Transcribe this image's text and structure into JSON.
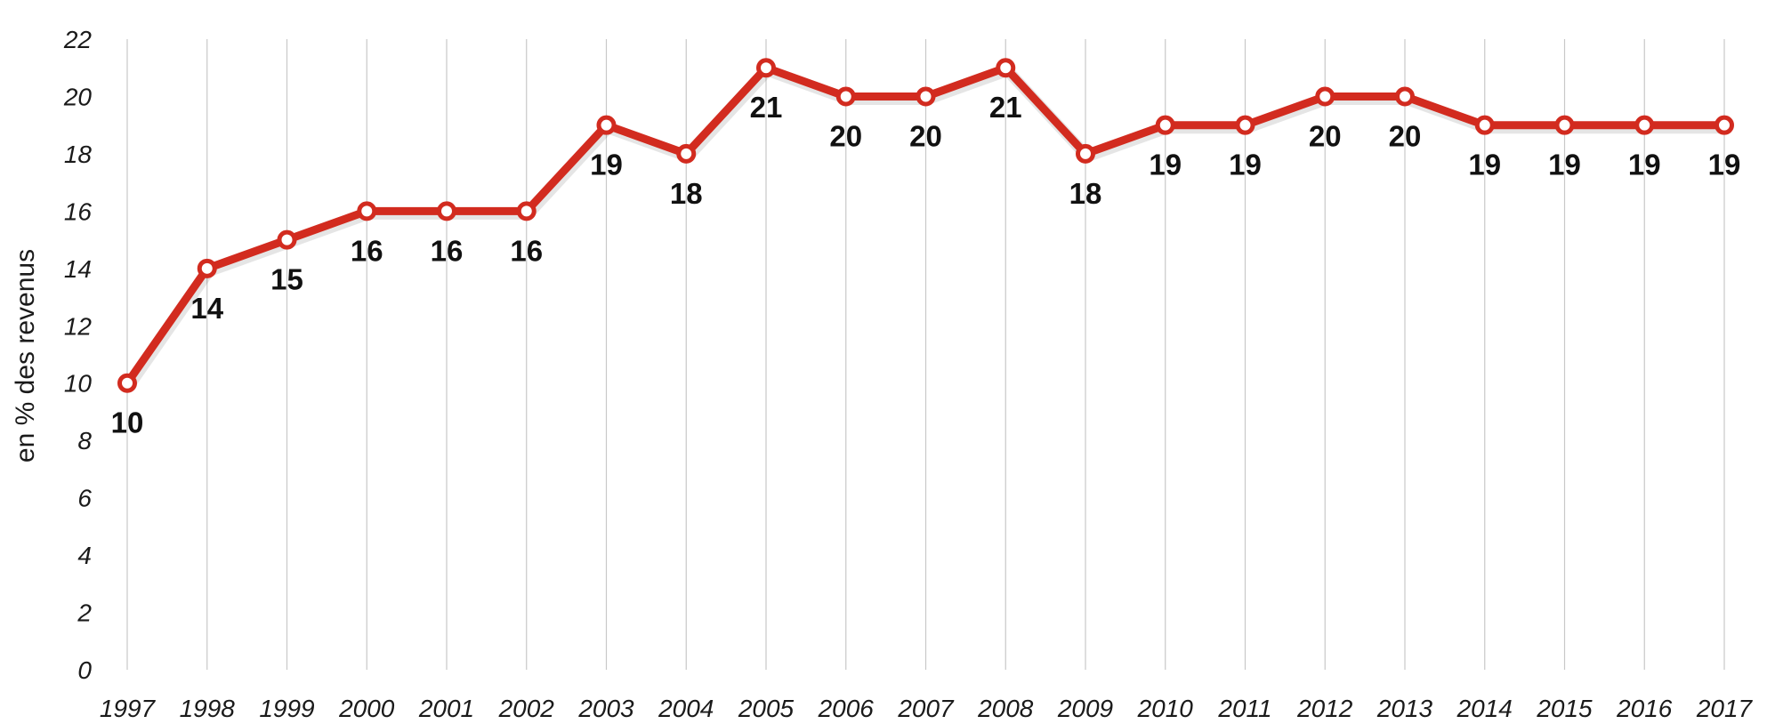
{
  "chart_data": {
    "type": "line",
    "title": "",
    "xlabel": "",
    "ylabel": "en % des revenus",
    "categories": [
      "1997",
      "1998",
      "1999",
      "2000",
      "2001",
      "2002",
      "2003",
      "2004",
      "2005",
      "2006",
      "2007",
      "2008",
      "2009",
      "2010",
      "2011",
      "2012",
      "2013",
      "2014",
      "2015",
      "2016",
      "2017"
    ],
    "series": [
      {
        "values": [
          10,
          14,
          15,
          16,
          16,
          16,
          19,
          18,
          21,
          20,
          20,
          21,
          18,
          19,
          19,
          20,
          20,
          19,
          19,
          19,
          19
        ],
        "data_labels": [
          "10",
          "14",
          "15",
          "16",
          "16",
          "16",
          "19",
          "18",
          "21",
          "20",
          "20",
          "21",
          "18",
          "19",
          "19",
          "20",
          "20",
          "19",
          "19",
          "19",
          "19"
        ],
        "color": "#d22b1f"
      }
    ],
    "ylim": [
      0,
      22
    ],
    "yticks": [
      "0",
      "2",
      "4",
      "6",
      "8",
      "10",
      "12",
      "14",
      "16",
      "18",
      "20",
      "22"
    ],
    "grid": "vertical",
    "legend": "none"
  }
}
